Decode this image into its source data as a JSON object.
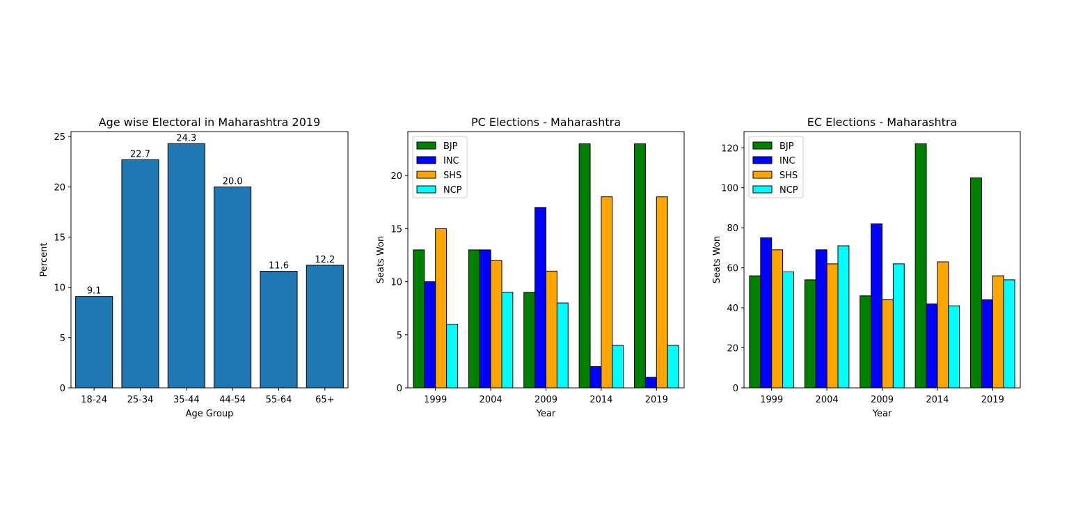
{
  "chart_data": [
    {
      "type": "bar",
      "title": "Age wise Electoral in Maharashtra 2019",
      "xlabel": "Age Group",
      "ylabel": "Percent",
      "categories": [
        "18-24",
        "25-34",
        "35-44",
        "44-54",
        "55-64",
        "65+"
      ],
      "values": [
        9.1,
        22.7,
        24.3,
        20.0,
        11.6,
        12.2
      ],
      "value_labels": [
        "9.1",
        "22.7",
        "24.3",
        "20.0",
        "11.6",
        "12.2"
      ],
      "ylim": [
        0,
        25.5
      ],
      "yticks": [
        0,
        5,
        10,
        15,
        20,
        25
      ],
      "bar_color": "#1f77b4",
      "grid": false
    },
    {
      "type": "bar",
      "title": "PC Elections - Maharashtra",
      "xlabel": "Year",
      "ylabel": "Seats Won",
      "categories": [
        "1999",
        "2004",
        "2009",
        "2014",
        "2019"
      ],
      "series": [
        {
          "name": "BJP",
          "color": "#008000",
          "values": [
            13,
            13,
            9,
            23,
            23
          ]
        },
        {
          "name": "INC",
          "color": "#0000ff",
          "values": [
            10,
            13,
            17,
            2,
            1
          ]
        },
        {
          "name": "SHS",
          "color": "#ffa500",
          "values": [
            15,
            12,
            11,
            18,
            18
          ]
        },
        {
          "name": "NCP",
          "color": "#00ffff",
          "values": [
            6,
            9,
            8,
            4,
            4
          ]
        }
      ],
      "ylim": [
        0,
        24.15
      ],
      "yticks": [
        0,
        5,
        10,
        15,
        20
      ],
      "legend": "top-left",
      "grid": false
    },
    {
      "type": "bar",
      "title": "EC Elections - Maharashtra",
      "xlabel": "Year",
      "ylabel": "Seats Won",
      "categories": [
        "1999",
        "2004",
        "2009",
        "2014",
        "2019"
      ],
      "series": [
        {
          "name": "BJP",
          "color": "#008000",
          "values": [
            56,
            54,
            46,
            122,
            105
          ]
        },
        {
          "name": "INC",
          "color": "#0000ff",
          "values": [
            75,
            69,
            82,
            42,
            44
          ]
        },
        {
          "name": "SHS",
          "color": "#ffa500",
          "values": [
            69,
            62,
            44,
            63,
            56
          ]
        },
        {
          "name": "NCP",
          "color": "#00ffff",
          "values": [
            58,
            71,
            62,
            41,
            54
          ]
        }
      ],
      "ylim": [
        0,
        128.1
      ],
      "yticks": [
        0,
        20,
        40,
        60,
        80,
        100,
        120
      ],
      "legend": "top-left",
      "grid": false
    }
  ]
}
